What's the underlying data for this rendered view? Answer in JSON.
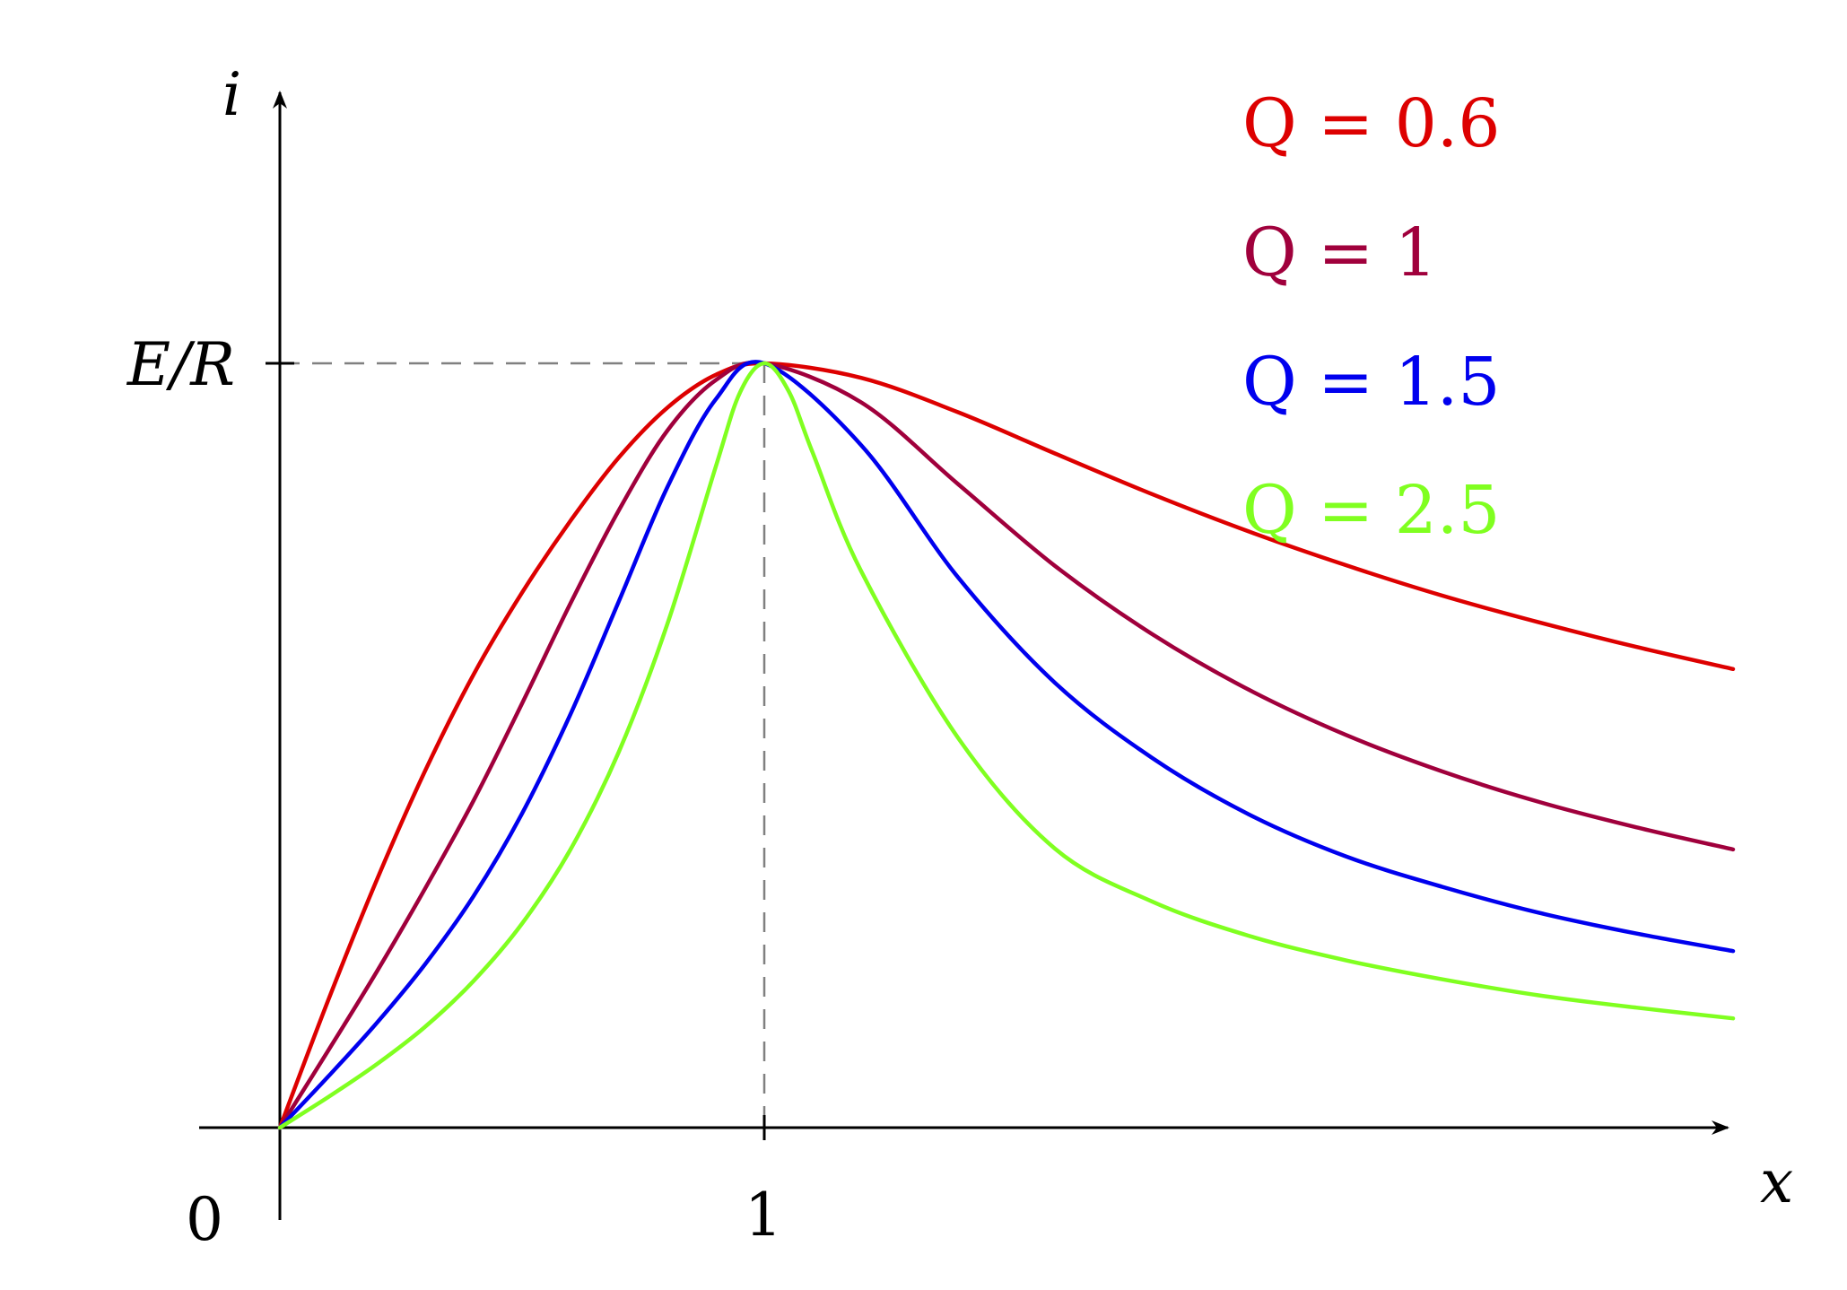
{
  "chart_data": {
    "type": "line",
    "xlabel": "x",
    "ylabel": "i",
    "xlim": [
      0,
      3
    ],
    "ylim": [
      0,
      1
    ],
    "origin_label": "0",
    "x_ticks": [
      {
        "value": 1,
        "label": "1"
      }
    ],
    "y_ticks": [
      {
        "value": 1,
        "label": "E/R"
      }
    ],
    "reference_lines": [
      {
        "orientation": "horizontal",
        "value": 1,
        "style": "dashed",
        "color": "#808080"
      },
      {
        "orientation": "vertical",
        "value": 1,
        "style": "dashed",
        "color": "#808080"
      }
    ],
    "legend_position": "top-right",
    "series": [
      {
        "name": "Q = 0.6",
        "Q": 0.6,
        "color": "#dd0000",
        "x": [
          0,
          0.1,
          0.2,
          0.3,
          0.4,
          0.5,
          0.6,
          0.7,
          0.8,
          0.9,
          1.0,
          1.2,
          1.4,
          1.6,
          1.8,
          2.0,
          2.2,
          2.4,
          2.6,
          2.8,
          3.0
        ],
        "y": [
          0,
          0.167,
          0.324,
          0.467,
          0.593,
          0.7,
          0.794,
          0.877,
          0.942,
          0.985,
          1.0,
          0.981,
          0.936,
          0.882,
          0.829,
          0.78,
          0.736,
          0.696,
          0.661,
          0.629,
          0.6
        ]
      },
      {
        "name": "Q = 1",
        "Q": 1,
        "color": "#a0003c",
        "x": [
          0,
          0.1,
          0.2,
          0.3,
          0.4,
          0.5,
          0.6,
          0.7,
          0.8,
          0.9,
          1.0,
          1.2,
          1.4,
          1.6,
          1.8,
          2.0,
          2.2,
          2.4,
          2.6,
          2.8,
          3.0
        ],
        "y": [
          0,
          0.101,
          0.204,
          0.313,
          0.428,
          0.555,
          0.686,
          0.808,
          0.912,
          0.978,
          1.0,
          0.949,
          0.842,
          0.735,
          0.646,
          0.573,
          0.514,
          0.466,
          0.426,
          0.393,
          0.364
        ]
      },
      {
        "name": "Q = 1.5",
        "Q": 1.5,
        "color": "#0000ee",
        "x": [
          0,
          0.1,
          0.2,
          0.3,
          0.4,
          0.5,
          0.6,
          0.7,
          0.8,
          0.9,
          1.0,
          1.2,
          1.4,
          1.6,
          1.8,
          2.0,
          2.2,
          2.4,
          2.6,
          2.8,
          3.0
        ],
        "y": [
          0,
          0.067,
          0.137,
          0.214,
          0.303,
          0.411,
          0.541,
          0.689,
          0.838,
          0.953,
          1.0,
          0.893,
          0.72,
          0.582,
          0.484,
          0.41,
          0.355,
          0.315,
          0.281,
          0.254,
          0.231
        ]
      },
      {
        "name": "Q = 2.5",
        "Q": 2.5,
        "color": "#80ff20",
        "x": [
          0,
          0.1,
          0.2,
          0.3,
          0.4,
          0.5,
          0.6,
          0.7,
          0.8,
          0.9,
          0.95,
          1.0,
          1.05,
          1.1,
          1.2,
          1.4,
          1.6,
          1.8,
          2.0,
          2.2,
          2.4,
          2.6,
          2.8,
          3.0
        ],
        "y": [
          0,
          0.04,
          0.083,
          0.132,
          0.192,
          0.267,
          0.364,
          0.492,
          0.659,
          0.865,
          0.962,
          1.0,
          0.964,
          0.883,
          0.728,
          0.51,
          0.365,
          0.296,
          0.251,
          0.219,
          0.194,
          0.173,
          0.157,
          0.143
        ]
      }
    ]
  }
}
